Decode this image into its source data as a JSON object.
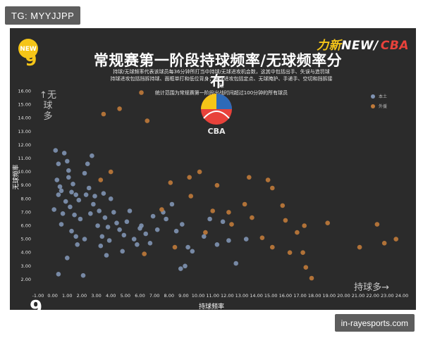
{
  "watermark_tag": "TG: MYYJJPP",
  "source_badge": "in-rayesports.com",
  "brand": {
    "part1": "力新",
    "part2": "NEW/",
    "part3": "CBA"
  },
  "logo_left_text": "NEW",
  "logo_left_digit": "9",
  "colors": {
    "background": "#2b2b2b",
    "local": "#7f93b3",
    "foreign": "#c07a3a",
    "text": "#ffffff"
  },
  "chart_data": {
    "type": "scatter",
    "title": "常规赛第一阶段持球频率/无球频率分布",
    "subtitle": "持球/无球频率代表该球员每36分钟所打当中持球/无球进攻机会数，这其中包括出手、失误与造罚球\n持球进攻包括挡拆持球、面框单打和低位背身；无球进攻包括定点、无球掩护、手递手、空切和挡拆接球\n统计范围为常规赛第一阶段出战时间超过100分钟的所有球员",
    "xlabel": "持球频率",
    "ylabel": "无球频率",
    "xlim": [
      -1,
      24
    ],
    "ylim": [
      1,
      16.5
    ],
    "xticks": [
      "-1.00",
      "0.00",
      "1.00",
      "2.00",
      "3.00",
      "4.00",
      "5.00",
      "6.00",
      "7.00",
      "8.00",
      "9.00",
      "10.00",
      "11.00",
      "12.00",
      "13.00",
      "14.00",
      "15.00",
      "16.00",
      "17.00",
      "18.00",
      "19.00",
      "20.00",
      "21.00",
      "22.00",
      "23.00",
      "24.00"
    ],
    "yticks": [
      "2.00",
      "3.00",
      "4.00",
      "5.00",
      "6.00",
      "7.00",
      "8.00",
      "9.00",
      "10.00",
      "11.00",
      "12.00",
      "13.00",
      "14.00",
      "15.00",
      "16.00"
    ],
    "annotations": {
      "up": "↑无球多",
      "right": "持球多→"
    },
    "series": [
      {
        "name": "本土",
        "color": "#7f93b3",
        "points": [
          [
            0.2,
            11.6
          ],
          [
            0.4,
            10.6
          ],
          [
            0.5,
            8.9
          ],
          [
            0.6,
            8.6
          ],
          [
            0.4,
            8.3
          ],
          [
            0.8,
            11.4
          ],
          [
            1.0,
            10.8
          ],
          [
            1.1,
            9.6
          ],
          [
            1.4,
            9.1
          ],
          [
            1.3,
            8.5
          ],
          [
            1.6,
            8.3
          ],
          [
            0.9,
            7.8
          ],
          [
            1.2,
            7.4
          ],
          [
            1.5,
            6.8
          ],
          [
            1.9,
            6.5
          ],
          [
            0.6,
            6.1
          ],
          [
            1.3,
            5.6
          ],
          [
            1.6,
            5.2
          ],
          [
            2.2,
            5.0
          ],
          [
            1.7,
            4.6
          ],
          [
            1.0,
            3.6
          ],
          [
            0.4,
            2.4
          ],
          [
            2.1,
            2.3
          ],
          [
            2.2,
            9.9
          ],
          [
            2.4,
            10.6
          ],
          [
            2.5,
            8.8
          ],
          [
            2.9,
            8.2
          ],
          [
            2.8,
            7.6
          ],
          [
            2.6,
            6.9
          ],
          [
            3.2,
            7.1
          ],
          [
            3.1,
            6.0
          ],
          [
            3.6,
            6.6
          ],
          [
            3.8,
            5.9
          ],
          [
            3.4,
            5.2
          ],
          [
            3.9,
            4.9
          ],
          [
            3.3,
            4.5
          ],
          [
            3.7,
            3.8
          ],
          [
            4.2,
            7.0
          ],
          [
            4.4,
            6.2
          ],
          [
            4.6,
            5.7
          ],
          [
            4.9,
            5.3
          ],
          [
            5.1,
            6.3
          ],
          [
            5.3,
            7.1
          ],
          [
            5.6,
            5.0
          ],
          [
            5.8,
            4.6
          ],
          [
            4.8,
            4.1
          ],
          [
            6.1,
            6.0
          ],
          [
            6.4,
            5.4
          ],
          [
            6.7,
            4.7
          ],
          [
            6.9,
            6.7
          ],
          [
            7.2,
            5.7
          ],
          [
            7.6,
            7.0
          ],
          [
            8.2,
            7.6
          ],
          [
            8.5,
            5.6
          ],
          [
            9.3,
            4.4
          ],
          [
            8.9,
            6.1
          ],
          [
            9.6,
            4.1
          ],
          [
            10.4,
            5.2
          ],
          [
            10.8,
            6.5
          ],
          [
            11.3,
            4.6
          ],
          [
            11.7,
            6.3
          ],
          [
            12.1,
            4.9
          ],
          [
            12.6,
            3.2
          ],
          [
            13.3,
            5.0
          ],
          [
            8.8,
            2.8
          ],
          [
            9.1,
            3.0
          ],
          [
            0.1,
            7.2
          ],
          [
            0.7,
            6.9
          ],
          [
            1.8,
            7.9
          ],
          [
            2.3,
            8.3
          ],
          [
            3.5,
            8.4
          ],
          [
            0.3,
            9.4
          ],
          [
            1.1,
            10.1
          ],
          [
            2.7,
            11.2
          ],
          [
            4.0,
            8.0
          ],
          [
            6.0,
            5.8
          ],
          [
            7.8,
            6.5
          ]
        ]
      },
      {
        "name": "外援",
        "color": "#c07a3a",
        "points": [
          [
            6.1,
            15.9
          ],
          [
            4.6,
            14.7
          ],
          [
            3.5,
            14.3
          ],
          [
            6.5,
            13.8
          ],
          [
            4.0,
            10.0
          ],
          [
            3.3,
            9.4
          ],
          [
            9.4,
            9.6
          ],
          [
            10.1,
            10.0
          ],
          [
            11.3,
            9.0
          ],
          [
            13.5,
            9.6
          ],
          [
            14.8,
            9.4
          ],
          [
            15.1,
            8.8
          ],
          [
            11.0,
            7.1
          ],
          [
            13.2,
            7.6
          ],
          [
            12.1,
            7.0
          ],
          [
            13.7,
            6.6
          ],
          [
            15.8,
            7.5
          ],
          [
            16.0,
            6.4
          ],
          [
            17.3,
            6.0
          ],
          [
            16.8,
            5.5
          ],
          [
            18.9,
            6.2
          ],
          [
            22.3,
            6.1
          ],
          [
            21.1,
            4.4
          ],
          [
            22.8,
            4.7
          ],
          [
            23.6,
            5.0
          ],
          [
            14.4,
            5.1
          ],
          [
            15.1,
            4.4
          ],
          [
            17.2,
            4.0
          ],
          [
            16.3,
            4.0
          ],
          [
            17.4,
            2.9
          ],
          [
            17.8,
            2.1
          ],
          [
            9.5,
            8.2
          ],
          [
            8.1,
            9.2
          ],
          [
            10.5,
            5.5
          ],
          [
            12.3,
            6.1
          ],
          [
            7.5,
            7.2
          ],
          [
            6.3,
            3.9
          ],
          [
            8.4,
            4.4
          ]
        ]
      }
    ]
  }
}
